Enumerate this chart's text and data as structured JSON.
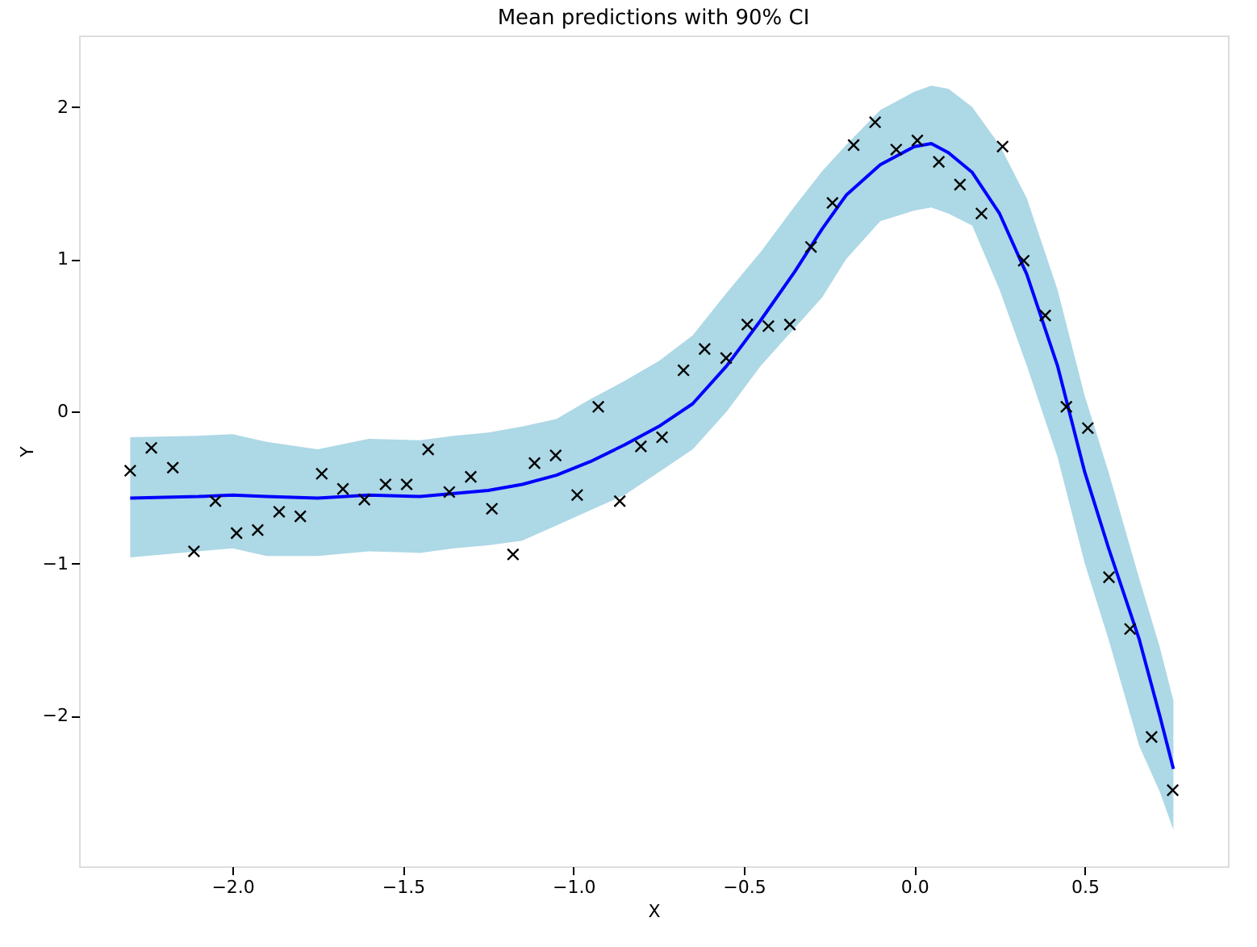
{
  "chart_data": {
    "type": "scatter",
    "title": "Mean predictions with 90% CI",
    "xlabel": "X",
    "ylabel": "Y",
    "xlim": [
      -2.45,
      0.92
    ],
    "ylim": [
      -2.99,
      2.47
    ],
    "xticks": [
      {
        "value": -2,
        "label": "−2.0"
      },
      {
        "value": -1.5,
        "label": "−1.5"
      },
      {
        "value": -1,
        "label": "−1.0"
      },
      {
        "value": -0.5,
        "label": "−0.5"
      },
      {
        "value": 0,
        "label": "0.0"
      },
      {
        "value": 0.5,
        "label": "0.5"
      }
    ],
    "yticks": [
      {
        "value": -2,
        "label": "−2"
      },
      {
        "value": -1,
        "label": "−1"
      },
      {
        "value": 0,
        "label": "0"
      },
      {
        "value": 1,
        "label": "1"
      },
      {
        "value": 2,
        "label": "2"
      }
    ],
    "grid": false,
    "series": [
      {
        "type": "line",
        "color": "#0000ff",
        "line_style": "solid",
        "marker": "none",
        "x": [
          -2.3,
          -2.1,
          -2.0,
          -1.9,
          -1.75,
          -1.6,
          -1.45,
          -1.35,
          -1.25,
          -1.15,
          -1.05,
          -0.95,
          -0.85,
          -0.75,
          -0.65,
          -0.55,
          -0.45,
          -0.35,
          -0.27,
          -0.2,
          -0.1,
          0.0,
          0.05,
          0.1,
          0.17,
          0.25,
          0.33,
          0.42,
          0.5,
          0.57,
          0.66,
          0.72,
          0.76
        ],
        "values": [
          -0.57,
          -0.56,
          -0.55,
          -0.56,
          -0.57,
          -0.55,
          -0.56,
          -0.54,
          -0.52,
          -0.48,
          -0.42,
          -0.33,
          -0.22,
          -0.1,
          0.05,
          0.3,
          0.6,
          0.92,
          1.2,
          1.42,
          1.62,
          1.74,
          1.76,
          1.7,
          1.57,
          1.3,
          0.9,
          0.3,
          -0.4,
          -0.9,
          -1.5,
          -2.0,
          -2.35
        ],
        "lower": [
          -0.96,
          -0.92,
          -0.9,
          -0.95,
          -0.95,
          -0.92,
          -0.93,
          -0.9,
          -0.88,
          -0.85,
          -0.75,
          -0.65,
          -0.55,
          -0.4,
          -0.25,
          0.0,
          0.3,
          0.55,
          0.75,
          1.0,
          1.25,
          1.32,
          1.34,
          1.3,
          1.22,
          0.8,
          0.3,
          -0.3,
          -1.0,
          -1.5,
          -2.2,
          -2.5,
          -2.75
        ],
        "upper": [
          -0.17,
          -0.16,
          -0.15,
          -0.2,
          -0.25,
          -0.18,
          -0.19,
          -0.16,
          -0.14,
          -0.1,
          -0.05,
          0.08,
          0.2,
          0.33,
          0.5,
          0.78,
          1.05,
          1.35,
          1.58,
          1.75,
          1.98,
          2.1,
          2.14,
          2.12,
          2.0,
          1.75,
          1.4,
          0.8,
          0.1,
          -0.4,
          -1.1,
          -1.55,
          -1.9
        ]
      },
      {
        "color": "#000000",
        "marker": "cross",
        "x": [
          -2.3,
          -2.238,
          -2.175,
          -2.113,
          -2.05,
          -1.988,
          -1.926,
          -1.863,
          -1.801,
          -1.738,
          -1.676,
          -1.613,
          -1.551,
          -1.489,
          -1.426,
          -1.364,
          -1.301,
          -1.239,
          -1.177,
          -1.114,
          -1.052,
          -0.989,
          -0.927,
          -0.864,
          -0.802,
          -0.74,
          -0.677,
          -0.615,
          -0.552,
          -0.49,
          -0.428,
          -0.365,
          -0.303,
          -0.24,
          -0.178,
          -0.115,
          -0.053,
          0.009,
          0.072,
          0.134,
          0.197,
          0.259,
          0.321,
          0.384,
          0.446,
          0.509,
          0.571,
          0.633,
          0.696,
          0.758
        ],
        "values": [
          -0.39,
          -0.24,
          -0.37,
          -0.92,
          -0.59,
          -0.8,
          -0.78,
          -0.66,
          -0.69,
          -0.41,
          -0.51,
          -0.58,
          -0.48,
          -0.48,
          -0.25,
          -0.53,
          -0.43,
          -0.64,
          -0.94,
          -0.34,
          -0.29,
          -0.55,
          0.03,
          -0.59,
          -0.23,
          -0.17,
          0.27,
          0.41,
          0.35,
          0.57,
          0.56,
          0.57,
          1.08,
          1.37,
          1.75,
          1.9,
          1.72,
          1.78,
          1.64,
          1.49,
          1.3,
          1.74,
          0.99,
          0.63,
          0.03,
          -0.11,
          -1.09,
          -1.43,
          -2.14,
          -2.49
        ]
      }
    ]
  }
}
